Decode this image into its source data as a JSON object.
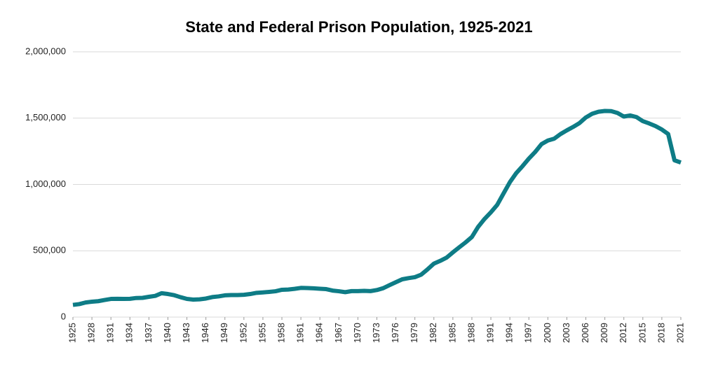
{
  "chart_data": {
    "type": "line",
    "title": "State and Federal Prison Population, 1925-2021",
    "x": [
      1925,
      1926,
      1927,
      1928,
      1929,
      1930,
      1931,
      1932,
      1933,
      1934,
      1935,
      1936,
      1937,
      1938,
      1939,
      1940,
      1941,
      1942,
      1943,
      1944,
      1945,
      1946,
      1947,
      1948,
      1949,
      1950,
      1951,
      1952,
      1953,
      1954,
      1955,
      1956,
      1957,
      1958,
      1959,
      1960,
      1961,
      1962,
      1963,
      1964,
      1965,
      1966,
      1967,
      1968,
      1969,
      1970,
      1971,
      1972,
      1973,
      1974,
      1975,
      1976,
      1977,
      1978,
      1979,
      1980,
      1981,
      1982,
      1983,
      1984,
      1985,
      1986,
      1987,
      1988,
      1989,
      1990,
      1991,
      1992,
      1993,
      1994,
      1995,
      1996,
      1997,
      1998,
      1999,
      2000,
      2001,
      2002,
      2003,
      2004,
      2005,
      2006,
      2007,
      2008,
      2009,
      2010,
      2011,
      2012,
      2013,
      2014,
      2015,
      2016,
      2017,
      2018,
      2019,
      2020,
      2021
    ],
    "values": [
      92000,
      98000,
      110000,
      116000,
      120000,
      129000,
      137000,
      138000,
      137000,
      138000,
      144000,
      145000,
      153000,
      160000,
      180000,
      174000,
      165000,
      150000,
      137000,
      132000,
      134000,
      140000,
      151000,
      156000,
      164000,
      166000,
      166000,
      168000,
      174000,
      183000,
      186000,
      190000,
      195000,
      206000,
      208000,
      213000,
      220000,
      219000,
      217000,
      214000,
      211000,
      200000,
      195000,
      188000,
      196000,
      196000,
      198000,
      196000,
      204000,
      218000,
      241000,
      263000,
      285000,
      294000,
      301000,
      320000,
      360000,
      403000,
      424000,
      448000,
      488000,
      526000,
      563000,
      604000,
      681000,
      740000,
      790000,
      846000,
      932000,
      1017000,
      1085000,
      1138000,
      1195000,
      1245000,
      1304000,
      1331000,
      1345000,
      1380000,
      1408000,
      1434000,
      1463000,
      1505000,
      1533000,
      1548000,
      1554000,
      1553000,
      1539000,
      1512000,
      1520000,
      1508000,
      1477000,
      1460000,
      1440000,
      1414000,
      1380000,
      1182000,
      1165000
    ],
    "color": "#0e7c86",
    "xlim": [
      1925,
      2021
    ],
    "xticks": [
      1925,
      1928,
      1931,
      1934,
      1937,
      1940,
      1943,
      1946,
      1949,
      1952,
      1955,
      1958,
      1961,
      1964,
      1967,
      1970,
      1973,
      1976,
      1979,
      1982,
      1985,
      1988,
      1991,
      1994,
      1997,
      2000,
      2003,
      2006,
      2009,
      2012,
      2015,
      2018,
      2021
    ],
    "ylim": [
      0,
      2000000
    ],
    "yticks": [
      0,
      {
        "value": 500000,
        "label": "500,000"
      },
      {
        "value": 1000000,
        "label": "1,000,000"
      },
      {
        "value": 1500000,
        "label": "1,500,000"
      },
      {
        "value": 2000000,
        "label": "2,000,000"
      }
    ],
    "grid": true
  }
}
